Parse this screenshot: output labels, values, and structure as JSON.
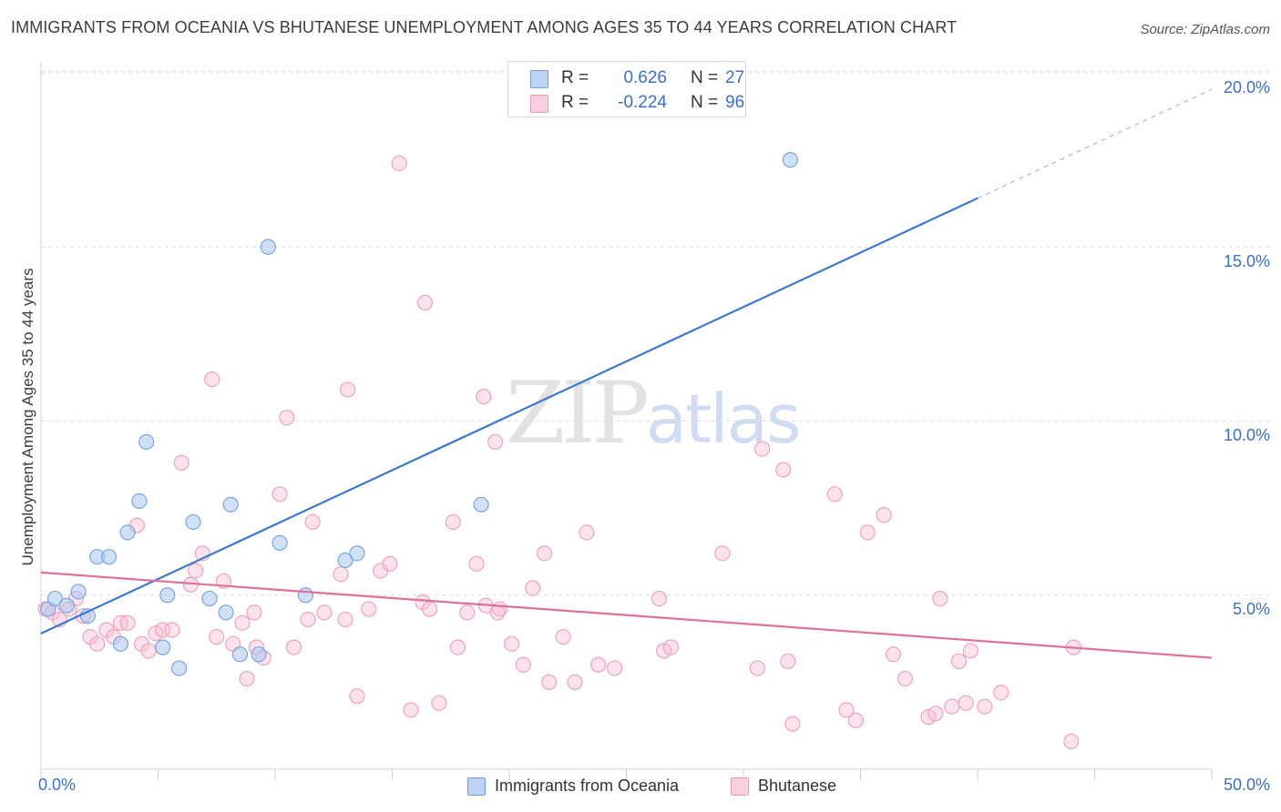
{
  "title": "IMMIGRANTS FROM OCEANIA VS BHUTANESE UNEMPLOYMENT AMONG AGES 35 TO 44 YEARS CORRELATION CHART",
  "source": "Source: ZipAtlas.com",
  "watermark": {
    "zip": "ZIP",
    "atlas": "atlas"
  },
  "legend": {
    "items": [
      {
        "r_label": "R =",
        "r_value": "0.626",
        "n_label": "N =",
        "n_value": "27",
        "color": "#a9c6f0"
      },
      {
        "r_label": "R =",
        "r_value": "-0.224",
        "n_label": "N =",
        "n_value": "96",
        "color": "#f5b4c8"
      }
    ],
    "bottom": [
      "Immigrants from Oceania",
      "Bhutanese"
    ]
  },
  "chart_data": {
    "type": "scatter",
    "xlabel": "",
    "ylabel": "Unemployment Among Ages 35 to 44 years",
    "xlim": [
      0,
      50
    ],
    "ylim": [
      0,
      20.5
    ],
    "x_tick_labels": [
      "0.0%",
      "50.0%"
    ],
    "y_ticks": [
      5,
      10,
      15,
      20
    ],
    "y_tick_labels": [
      "5.0%",
      "10.0%",
      "15.0%",
      "20.0%"
    ],
    "grid": "horizontal dashed",
    "colors": {
      "oceania": "#3a78d2",
      "bhutanese": "#e0709a"
    },
    "series": [
      {
        "name": "Immigrants from Oceania",
        "trend": {
          "x": [
            0,
            40
          ],
          "y": [
            3.9,
            16.4
          ],
          "extension_to_x": 50
        },
        "points": [
          [
            0.3,
            4.6
          ],
          [
            0.6,
            4.9
          ],
          [
            1.1,
            4.7
          ],
          [
            1.6,
            5.1
          ],
          [
            2.0,
            4.4
          ],
          [
            2.4,
            6.1
          ],
          [
            2.9,
            6.1
          ],
          [
            3.4,
            3.6
          ],
          [
            3.7,
            6.8
          ],
          [
            4.2,
            7.7
          ],
          [
            4.5,
            9.4
          ],
          [
            5.2,
            3.5
          ],
          [
            5.4,
            5.0
          ],
          [
            5.9,
            2.9
          ],
          [
            6.5,
            7.1
          ],
          [
            7.2,
            4.9
          ],
          [
            7.9,
            4.5
          ],
          [
            8.1,
            7.6
          ],
          [
            8.5,
            3.3
          ],
          [
            9.3,
            3.3
          ],
          [
            9.7,
            15.0
          ],
          [
            10.2,
            6.5
          ],
          [
            11.3,
            5.0
          ],
          [
            13.0,
            6.0
          ],
          [
            13.5,
            6.2
          ],
          [
            18.8,
            7.6
          ],
          [
            32.0,
            17.5
          ]
        ]
      },
      {
        "name": "Bhutanese",
        "trend": {
          "x": [
            0,
            50
          ],
          "y": [
            5.65,
            3.2
          ]
        },
        "points": [
          [
            0.2,
            4.6
          ],
          [
            0.5,
            4.5
          ],
          [
            0.8,
            4.3
          ],
          [
            1.2,
            4.6
          ],
          [
            1.5,
            4.9
          ],
          [
            1.8,
            4.4
          ],
          [
            2.1,
            3.8
          ],
          [
            2.4,
            3.6
          ],
          [
            2.8,
            4.0
          ],
          [
            3.1,
            3.8
          ],
          [
            3.4,
            4.2
          ],
          [
            3.7,
            4.2
          ],
          [
            4.1,
            7.0
          ],
          [
            4.3,
            3.6
          ],
          [
            4.6,
            3.4
          ],
          [
            4.9,
            3.9
          ],
          [
            5.2,
            4.0
          ],
          [
            5.6,
            4.0
          ],
          [
            6.0,
            8.8
          ],
          [
            6.4,
            5.3
          ],
          [
            6.6,
            5.7
          ],
          [
            6.9,
            6.2
          ],
          [
            7.3,
            11.2
          ],
          [
            7.5,
            3.8
          ],
          [
            7.8,
            5.4
          ],
          [
            8.2,
            3.6
          ],
          [
            8.6,
            4.2
          ],
          [
            8.8,
            2.6
          ],
          [
            9.2,
            3.5
          ],
          [
            9.5,
            3.2
          ],
          [
            9.1,
            4.5
          ],
          [
            10.2,
            7.9
          ],
          [
            10.5,
            10.1
          ],
          [
            10.8,
            3.5
          ],
          [
            11.4,
            4.3
          ],
          [
            11.6,
            7.1
          ],
          [
            12.1,
            4.5
          ],
          [
            12.8,
            5.6
          ],
          [
            13.0,
            4.3
          ],
          [
            13.1,
            10.9
          ],
          [
            13.5,
            2.1
          ],
          [
            14.0,
            4.6
          ],
          [
            14.5,
            5.7
          ],
          [
            14.9,
            5.9
          ],
          [
            15.3,
            17.4
          ],
          [
            15.8,
            1.7
          ],
          [
            16.3,
            4.8
          ],
          [
            16.6,
            4.6
          ],
          [
            16.4,
            13.4
          ],
          [
            17.0,
            1.9
          ],
          [
            17.6,
            7.1
          ],
          [
            17.8,
            3.5
          ],
          [
            18.2,
            4.5
          ],
          [
            18.6,
            5.9
          ],
          [
            18.9,
            10.7
          ],
          [
            19.0,
            4.7
          ],
          [
            19.4,
            9.4
          ],
          [
            19.6,
            4.6
          ],
          [
            19.5,
            4.5
          ],
          [
            20.1,
            3.6
          ],
          [
            20.6,
            3.0
          ],
          [
            21.0,
            5.2
          ],
          [
            21.5,
            6.2
          ],
          [
            21.7,
            2.5
          ],
          [
            22.3,
            3.8
          ],
          [
            22.8,
            2.5
          ],
          [
            23.3,
            6.8
          ],
          [
            23.8,
            3.0
          ],
          [
            24.5,
            2.9
          ],
          [
            26.4,
            4.9
          ],
          [
            26.6,
            3.4
          ],
          [
            26.9,
            3.5
          ],
          [
            29.1,
            6.2
          ],
          [
            30.6,
            2.9
          ],
          [
            30.8,
            9.2
          ],
          [
            31.7,
            8.6
          ],
          [
            31.9,
            3.1
          ],
          [
            32.1,
            1.3
          ],
          [
            33.9,
            7.9
          ],
          [
            34.4,
            1.7
          ],
          [
            34.8,
            1.4
          ],
          [
            35.3,
            6.8
          ],
          [
            36.0,
            7.3
          ],
          [
            36.4,
            3.3
          ],
          [
            36.9,
            2.6
          ],
          [
            37.9,
            1.5
          ],
          [
            38.2,
            1.6
          ],
          [
            38.4,
            4.9
          ],
          [
            38.9,
            1.8
          ],
          [
            39.2,
            3.1
          ],
          [
            39.5,
            1.9
          ],
          [
            39.7,
            3.4
          ],
          [
            40.3,
            1.8
          ],
          [
            41.0,
            2.2
          ],
          [
            44.0,
            0.8
          ],
          [
            44.1,
            3.5
          ]
        ]
      }
    ]
  }
}
